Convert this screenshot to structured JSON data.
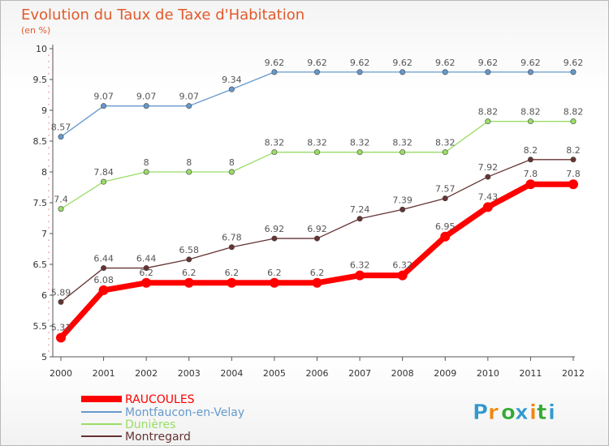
{
  "chart_data": {
    "type": "line",
    "title": "Evolution du Taux de Taxe d'Habitation",
    "subtitle": "(en %)",
    "xlabel": "",
    "ylabel": "",
    "ylim": [
      5,
      10
    ],
    "yticks": [
      "5",
      "5.5",
      "6",
      "6.5",
      "7",
      "7.5",
      "8",
      "8.5",
      "9",
      "9.5",
      "10"
    ],
    "categories": [
      "2000",
      "2001",
      "2002",
      "2003",
      "2004",
      "2005",
      "2006",
      "2007",
      "2008",
      "2009",
      "2010",
      "2011",
      "2012"
    ],
    "series": [
      {
        "name": "RAUCOULES",
        "color": "#ff0000",
        "values": [
          5.31,
          6.08,
          6.2,
          6.2,
          6.2,
          6.2,
          6.2,
          6.32,
          6.32,
          6.95,
          7.43,
          7.8,
          7.8
        ],
        "labels": [
          "5.31",
          "6.08",
          "6.2",
          "6.2",
          "6.2",
          "6.2",
          "6.2",
          "6.32",
          "6.32",
          "6.95",
          "7.43",
          "7.8",
          "7.8"
        ]
      },
      {
        "name": "Montfaucon-en-Velay",
        "color": "#6699cc",
        "values": [
          8.57,
          9.07,
          9.07,
          9.07,
          9.34,
          9.62,
          9.62,
          9.62,
          9.62,
          9.62,
          9.62,
          9.62,
          9.62
        ],
        "labels": [
          "8.57",
          "9.07",
          "9.07",
          "9.07",
          "9.34",
          "9.62",
          "9.62",
          "9.62",
          "9.62",
          "9.62",
          "9.62",
          "9.62",
          "9.62"
        ]
      },
      {
        "name": "Dunières",
        "color": "#99dd66",
        "values": [
          7.4,
          7.84,
          8,
          8,
          8,
          8.32,
          8.32,
          8.32,
          8.32,
          8.32,
          8.82,
          8.82,
          8.82
        ],
        "labels": [
          "7.4",
          "7.84",
          "8",
          "8",
          "8",
          "8.32",
          "8.32",
          "8.32",
          "8.32",
          "8.32",
          "8.82",
          "8.82",
          "8.82"
        ]
      },
      {
        "name": "Montregard",
        "color": "#663333",
        "values": [
          5.89,
          6.44,
          6.44,
          6.58,
          6.78,
          6.92,
          6.92,
          7.24,
          7.39,
          7.57,
          7.92,
          8.2,
          8.2
        ],
        "labels": [
          "5.89",
          "6.44",
          "6.44",
          "6.58",
          "6.78",
          "6.92",
          "6.92",
          "7.24",
          "7.39",
          "7.57",
          "7.92",
          "8.2",
          "8.2"
        ]
      }
    ],
    "legend_position": "bottom-left",
    "grid": false
  },
  "logo": {
    "text": "Proxiti",
    "letters": [
      "P",
      "r",
      "o",
      "x",
      "i",
      "t",
      "i"
    ],
    "colors": [
      "#3399cc",
      "#ee8811",
      "#33aa33",
      "#3399cc",
      "#ee8811",
      "#33aa33",
      "#3399cc"
    ]
  }
}
